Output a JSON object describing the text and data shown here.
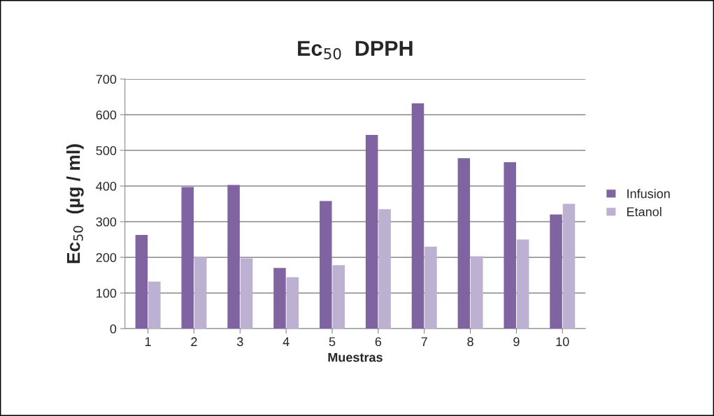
{
  "chart_data": {
    "type": "bar",
    "title": "Ec$_{50}$  DPPH",
    "xlabel": "Muestras",
    "ylabel": "Ec$_{50}$  (µg / ml)",
    "categories": [
      "1",
      "2",
      "3",
      "4",
      "5",
      "6",
      "7",
      "8",
      "9",
      "10"
    ],
    "series": [
      {
        "name": "Infusion",
        "color": "#8064a2",
        "values": [
          263,
          397,
          403,
          170,
          358,
          543,
          632,
          478,
          467,
          320
        ]
      },
      {
        "name": "Etanol",
        "color": "#bcb1d0",
        "values": [
          132,
          200,
          197,
          144,
          178,
          335,
          230,
          203,
          250,
          350
        ]
      }
    ],
    "ylim": [
      0,
      700
    ],
    "yticks": [
      0,
      100,
      200,
      300,
      400,
      500,
      600,
      700
    ],
    "grid": "y",
    "legend": "right"
  }
}
